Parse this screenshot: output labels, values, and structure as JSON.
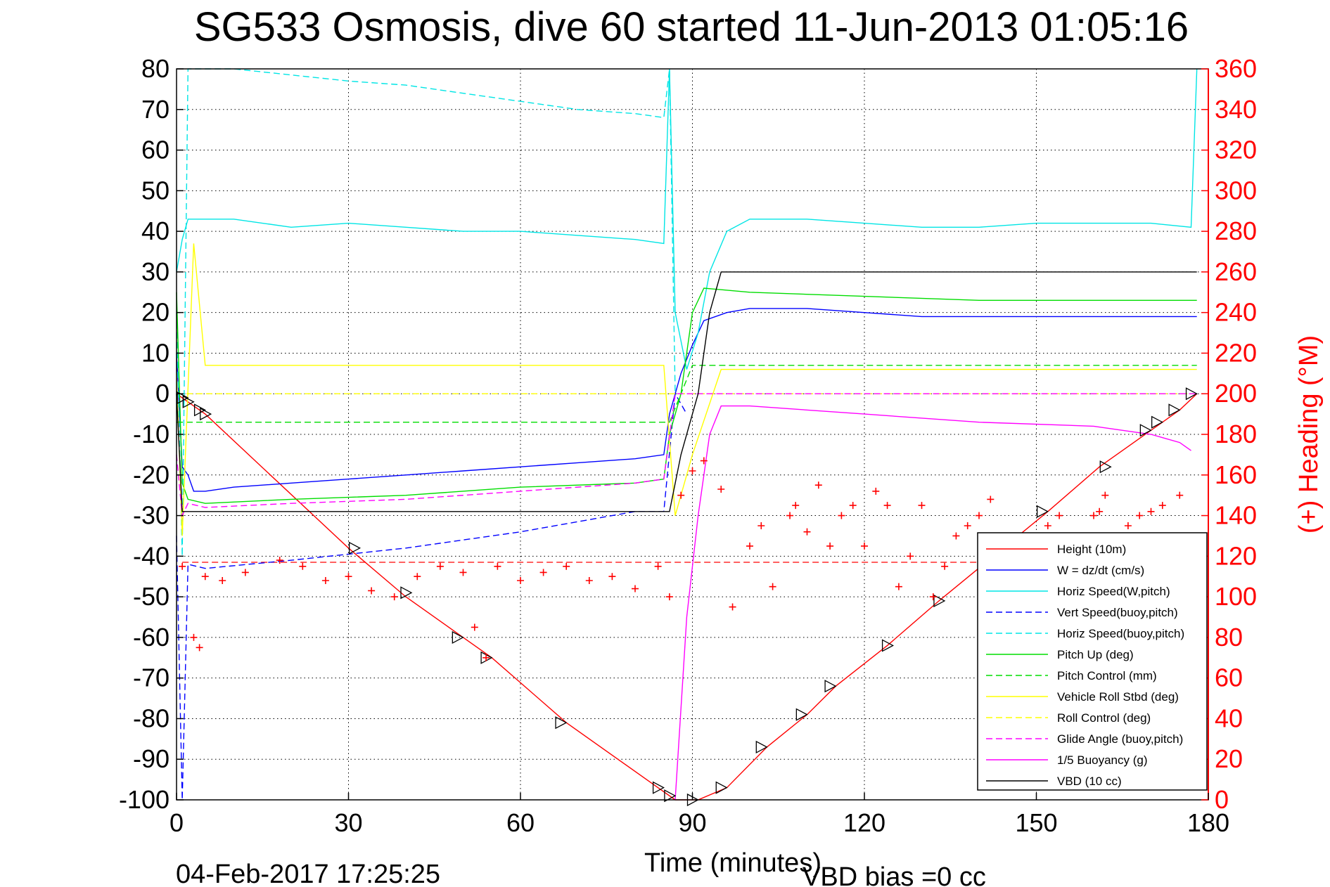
{
  "chart_data": {
    "type": "line",
    "title": "SG533 Osmosis, dive 60 started 11-Jun-2013 01:05:16",
    "xlabel": "Time (minutes)",
    "ylabel": "",
    "ylabel_right": "(+) Heading (°M)",
    "xlim": [
      0,
      180
    ],
    "ylim": [
      -100,
      80
    ],
    "ylim_right": [
      0,
      360
    ],
    "x_ticks": [
      0,
      30,
      60,
      90,
      120,
      150,
      180
    ],
    "y_ticks": [
      80,
      70,
      60,
      50,
      40,
      30,
      20,
      10,
      0,
      -10,
      -20,
      -30,
      -40,
      -50,
      -60,
      -70,
      -80,
      -90,
      -100
    ],
    "y_right_ticks": [
      360,
      340,
      320,
      300,
      280,
      260,
      240,
      220,
      200,
      180,
      160,
      140,
      120,
      100,
      80,
      60,
      40,
      20,
      0
    ],
    "grid": true,
    "legend_placement": "lower-right",
    "footer_left": "04-Feb-2017 17:25:25",
    "footer_right": "VBD bias =0 cc",
    "series": [
      {
        "name": "Height (10m)",
        "color": "#ff0000",
        "style": "solid",
        "points": [
          [
            0,
            0
          ],
          [
            1,
            -1
          ],
          [
            3,
            -3
          ],
          [
            5,
            -5
          ],
          [
            30,
            -38
          ],
          [
            40,
            -50
          ],
          [
            50,
            -60
          ],
          [
            55,
            -65
          ],
          [
            68,
            -81
          ],
          [
            84,
            -97
          ],
          [
            87,
            -100
          ],
          [
            91,
            -100
          ],
          [
            96,
            -97
          ],
          [
            103,
            -87
          ],
          [
            110,
            -79
          ],
          [
            115,
            -72
          ],
          [
            124,
            -62
          ],
          [
            133,
            -51
          ],
          [
            152,
            -29
          ],
          [
            161,
            -18
          ],
          [
            170,
            -9
          ],
          [
            172,
            -7
          ],
          [
            175,
            -4
          ],
          [
            178,
            0
          ]
        ]
      },
      {
        "name": "W = dz/dt (cm/s)",
        "color": "#0000ff",
        "style": "solid",
        "points": [
          [
            0,
            10
          ],
          [
            1,
            -18
          ],
          [
            2,
            -20
          ],
          [
            3,
            -24
          ],
          [
            5,
            -24
          ],
          [
            10,
            -23
          ],
          [
            20,
            -22
          ],
          [
            30,
            -21
          ],
          [
            40,
            -20
          ],
          [
            50,
            -19
          ],
          [
            60,
            -18
          ],
          [
            70,
            -17
          ],
          [
            80,
            -16
          ],
          [
            85,
            -15
          ],
          [
            86,
            -5
          ],
          [
            88,
            5
          ],
          [
            90,
            12
          ],
          [
            92,
            18
          ],
          [
            96,
            20
          ],
          [
            100,
            21
          ],
          [
            110,
            21
          ],
          [
            120,
            20
          ],
          [
            130,
            19
          ],
          [
            140,
            19
          ],
          [
            150,
            19
          ],
          [
            160,
            19
          ],
          [
            170,
            19
          ],
          [
            178,
            19
          ]
        ]
      },
      {
        "name": "Horiz Speed(W,pitch)",
        "color": "#00e5e5",
        "style": "solid",
        "points": [
          [
            0,
            30
          ],
          [
            1,
            38
          ],
          [
            2,
            43
          ],
          [
            5,
            43
          ],
          [
            10,
            43
          ],
          [
            20,
            41
          ],
          [
            30,
            42
          ],
          [
            40,
            41
          ],
          [
            50,
            40
          ],
          [
            60,
            40
          ],
          [
            70,
            39
          ],
          [
            80,
            38
          ],
          [
            85,
            37
          ],
          [
            86,
            80
          ],
          [
            87,
            20
          ],
          [
            89,
            6
          ],
          [
            91,
            15
          ],
          [
            93,
            30
          ],
          [
            96,
            40
          ],
          [
            100,
            43
          ],
          [
            110,
            43
          ],
          [
            120,
            42
          ],
          [
            130,
            41
          ],
          [
            140,
            41
          ],
          [
            150,
            42
          ],
          [
            160,
            42
          ],
          [
            170,
            42
          ],
          [
            177,
            41
          ],
          [
            178,
            80
          ]
        ]
      },
      {
        "name": "Vert Speed(buoy,pitch)",
        "color": "#0000ff",
        "style": "dashed",
        "points": [
          [
            0,
            -35
          ],
          [
            1,
            -100
          ],
          [
            2,
            -42
          ],
          [
            5,
            -43
          ],
          [
            20,
            -41
          ],
          [
            40,
            -38
          ],
          [
            60,
            -34
          ],
          [
            80,
            -29
          ],
          [
            85,
            -29
          ],
          [
            87,
            0
          ],
          [
            89,
            -5
          ]
        ]
      },
      {
        "name": "Horiz Speed(buoy,pitch)",
        "color": "#00e5e5",
        "style": "dashed",
        "points": [
          [
            0,
            20
          ],
          [
            1,
            -40
          ],
          [
            2,
            80
          ],
          [
            10,
            80
          ],
          [
            30,
            77
          ],
          [
            40,
            76
          ],
          [
            50,
            74
          ],
          [
            60,
            72
          ],
          [
            70,
            70
          ],
          [
            80,
            69
          ],
          [
            85,
            68
          ],
          [
            86,
            80
          ],
          [
            87,
            0
          ]
        ]
      },
      {
        "name": "Pitch Up (deg)",
        "color": "#00dd00",
        "style": "solid",
        "points": [
          [
            0,
            25
          ],
          [
            1,
            -22
          ],
          [
            2,
            -26
          ],
          [
            5,
            -27
          ],
          [
            20,
            -26
          ],
          [
            40,
            -25
          ],
          [
            60,
            -23
          ],
          [
            80,
            -22
          ],
          [
            85,
            -21
          ],
          [
            86,
            -10
          ],
          [
            88,
            0
          ],
          [
            90,
            20
          ],
          [
            92,
            26
          ],
          [
            100,
            25
          ],
          [
            120,
            24
          ],
          [
            140,
            23
          ],
          [
            160,
            23
          ],
          [
            178,
            23
          ]
        ]
      },
      {
        "name": "Pitch Control (mm)",
        "color": "#00dd00",
        "style": "dashed",
        "points": [
          [
            0,
            -7
          ],
          [
            85,
            -7
          ],
          [
            86,
            -7
          ],
          [
            90,
            7
          ],
          [
            178,
            7
          ]
        ]
      },
      {
        "name": "Vehicle Roll Stbd (deg)",
        "color": "#ffff00",
        "style": "solid",
        "points": [
          [
            0,
            5
          ],
          [
            1,
            -35
          ],
          [
            3,
            37
          ],
          [
            5,
            7
          ],
          [
            30,
            7
          ],
          [
            40,
            7
          ],
          [
            50,
            7
          ],
          [
            60,
            7
          ],
          [
            70,
            7
          ],
          [
            85,
            7
          ],
          [
            87,
            -30
          ],
          [
            90,
            -15
          ],
          [
            95,
            6
          ],
          [
            120,
            6
          ],
          [
            150,
            6
          ],
          [
            170,
            6
          ],
          [
            178,
            6
          ]
        ]
      },
      {
        "name": "Roll Control (deg)",
        "color": "#ffff00",
        "style": "dashed",
        "points": [
          [
            0,
            0
          ],
          [
            178,
            0
          ]
        ]
      },
      {
        "name": "Glide Angle (buoy,pitch)",
        "color": "#ff00ff",
        "style": "dashed",
        "points": [
          [
            0,
            -15
          ],
          [
            1,
            -30
          ],
          [
            2,
            -27
          ],
          [
            5,
            -28
          ],
          [
            20,
            -27
          ],
          [
            40,
            -26
          ],
          [
            60,
            -24
          ],
          [
            80,
            -22
          ],
          [
            85,
            -21
          ],
          [
            87,
            0
          ],
          [
            178,
            0
          ]
        ]
      },
      {
        "name": "1/5 Buoyancy (g)",
        "color": "#ff00ff",
        "style": "solid",
        "points": [
          [
            87,
            -100
          ],
          [
            89,
            -55
          ],
          [
            91,
            -30
          ],
          [
            93,
            -10
          ],
          [
            95,
            -3
          ],
          [
            100,
            -3
          ],
          [
            120,
            -5
          ],
          [
            140,
            -7
          ],
          [
            160,
            -8
          ],
          [
            170,
            -10
          ],
          [
            175,
            -12
          ],
          [
            177,
            -14
          ]
        ]
      },
      {
        "name": "VBD (10 cc)",
        "color": "#000000",
        "style": "solid",
        "points": [
          [
            0,
            0
          ],
          [
            1,
            -29
          ],
          [
            85,
            -29
          ],
          [
            86,
            -29
          ],
          [
            88,
            -15
          ],
          [
            91,
            0
          ],
          [
            93,
            20
          ],
          [
            95,
            30
          ],
          [
            178,
            30
          ]
        ]
      }
    ],
    "heading_series": {
      "name": "Heading",
      "axis": "right",
      "color": "#ff0000",
      "marker": "+",
      "points": [
        [
          1,
          115
        ],
        [
          3,
          80
        ],
        [
          4,
          75
        ],
        [
          5,
          110
        ],
        [
          8,
          108
        ],
        [
          12,
          112
        ],
        [
          18,
          118
        ],
        [
          22,
          115
        ],
        [
          26,
          108
        ],
        [
          30,
          110
        ],
        [
          34,
          103
        ],
        [
          38,
          100
        ],
        [
          42,
          110
        ],
        [
          46,
          115
        ],
        [
          50,
          112
        ],
        [
          52,
          85
        ],
        [
          54,
          70
        ],
        [
          56,
          115
        ],
        [
          60,
          108
        ],
        [
          64,
          112
        ],
        [
          68,
          115
        ],
        [
          72,
          108
        ],
        [
          76,
          110
        ],
        [
          80,
          104
        ],
        [
          84,
          115
        ],
        [
          86,
          100
        ],
        [
          88,
          150
        ],
        [
          90,
          162
        ],
        [
          92,
          167
        ],
        [
          95,
          153
        ],
        [
          97,
          95
        ],
        [
          100,
          125
        ],
        [
          102,
          135
        ],
        [
          104,
          105
        ],
        [
          107,
          140
        ],
        [
          108,
          145
        ],
        [
          110,
          132
        ],
        [
          112,
          155
        ],
        [
          114,
          125
        ],
        [
          116,
          140
        ],
        [
          118,
          145
        ],
        [
          120,
          125
        ],
        [
          122,
          152
        ],
        [
          124,
          145
        ],
        [
          126,
          105
        ],
        [
          128,
          120
        ],
        [
          130,
          145
        ],
        [
          132,
          100
        ],
        [
          134,
          115
        ],
        [
          136,
          130
        ],
        [
          138,
          135
        ],
        [
          140,
          140
        ],
        [
          142,
          148
        ],
        [
          144,
          115
        ],
        [
          146,
          100
        ],
        [
          148,
          115
        ],
        [
          150,
          125
        ],
        [
          152,
          135
        ],
        [
          154,
          140
        ],
        [
          156,
          120
        ],
        [
          158,
          125
        ],
        [
          160,
          140
        ],
        [
          161,
          142
        ],
        [
          162,
          150
        ],
        [
          164,
          125
        ],
        [
          166,
          135
        ],
        [
          168,
          140
        ],
        [
          170,
          142
        ],
        [
          172,
          145
        ],
        [
          175,
          150
        ]
      ]
    },
    "heading_target": {
      "color": "#ff0000",
      "style": "dashed",
      "value": 117
    },
    "triangle_markers": {
      "color": "#000000",
      "points": [
        [
          1,
          -1
        ],
        [
          2,
          -2
        ],
        [
          4,
          -4
        ],
        [
          5,
          -5
        ],
        [
          31,
          -38
        ],
        [
          40,
          -49
        ],
        [
          49,
          -60
        ],
        [
          54,
          -65
        ],
        [
          67,
          -81
        ],
        [
          84,
          -97
        ],
        [
          86,
          -99
        ],
        [
          90,
          -100
        ],
        [
          95,
          -97
        ],
        [
          102,
          -87
        ],
        [
          109,
          -79
        ],
        [
          114,
          -72
        ],
        [
          124,
          -62
        ],
        [
          133,
          -51
        ],
        [
          151,
          -29
        ],
        [
          162,
          -18
        ],
        [
          169,
          -9
        ],
        [
          171,
          -7
        ],
        [
          174,
          -4
        ],
        [
          177,
          0
        ]
      ]
    }
  }
}
